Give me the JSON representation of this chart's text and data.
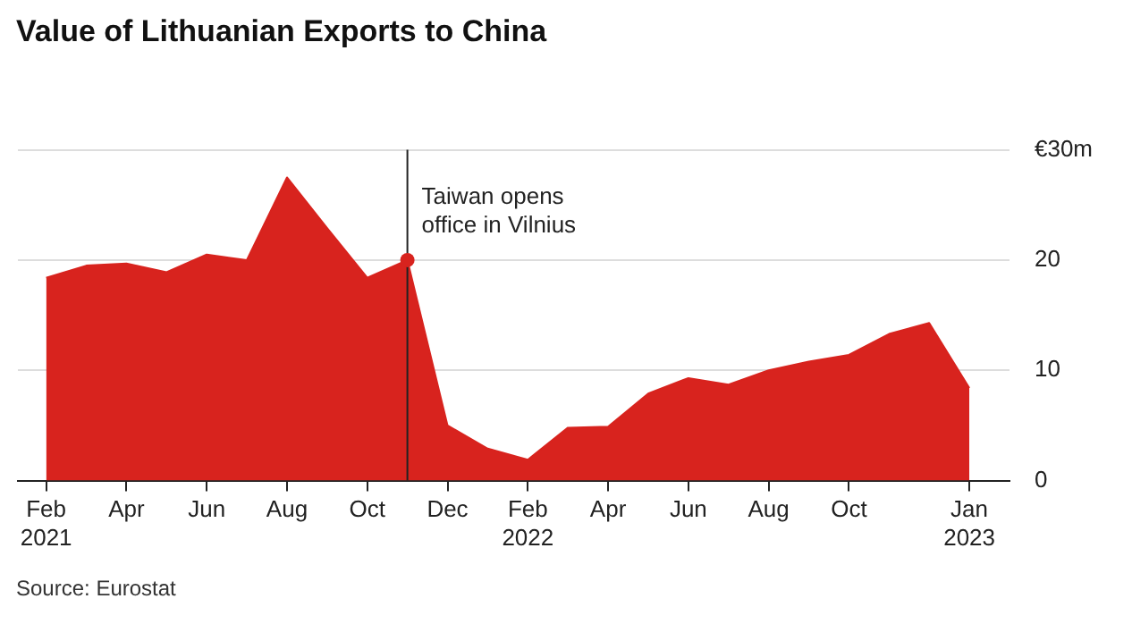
{
  "chart_data": {
    "type": "area",
    "title": "Value of Lithuanian Exports to China",
    "x": [
      "2021-02",
      "2021-03",
      "2021-04",
      "2021-05",
      "2021-06",
      "2021-07",
      "2021-08",
      "2021-09",
      "2021-10",
      "2021-11",
      "2021-12",
      "2022-01",
      "2022-02",
      "2022-03",
      "2022-04",
      "2022-05",
      "2022-06",
      "2022-07",
      "2022-08",
      "2022-09",
      "2022-10",
      "2022-11",
      "2022-12",
      "2023-01"
    ],
    "series": [
      {
        "color": "#d8231e",
        "values": [
          18.4,
          19.5,
          19.7,
          18.9,
          20.5,
          20.0,
          27.5,
          22.9,
          18.4,
          20.0,
          5.0,
          2.9,
          1.9,
          4.8,
          4.9,
          7.9,
          9.3,
          8.7,
          10.0,
          10.8,
          11.4,
          13.3,
          14.3,
          8.4
        ]
      }
    ],
    "xlim": [
      "2021-01-10",
      "2023-02-01"
    ],
    "xticks": [
      {
        "value": "2021-02",
        "label": "Feb 2021"
      },
      {
        "value": "2021-04",
        "label": "Apr"
      },
      {
        "value": "2021-06",
        "label": "Jun"
      },
      {
        "value": "2021-08",
        "label": "Aug"
      },
      {
        "value": "2021-10",
        "label": "Oct"
      },
      {
        "value": "2021-12",
        "label": "Dec"
      },
      {
        "value": "2022-02",
        "label": "Feb 2022"
      },
      {
        "value": "2022-04",
        "label": "Apr"
      },
      {
        "value": "2022-06",
        "label": "Jun"
      },
      {
        "value": "2022-08",
        "label": "Aug"
      },
      {
        "value": "2022-10",
        "label": "Oct"
      },
      {
        "value": "2023-01",
        "label": "Jan 2023"
      }
    ],
    "ylim": [
      0,
      30
    ],
    "yticks": [
      0,
      10,
      20,
      {
        "value": 30,
        "label": "€30m"
      }
    ],
    "grid": "y",
    "legend": false,
    "marker": "none",
    "ref_lines": [
      {
        "axis": "x",
        "value": "2021-11",
        "color": "#222222"
      }
    ],
    "annotations": [
      {
        "text": "Taiwan opens office in Vilnius",
        "x": "2021-11",
        "y": 20.0
      },
      "Source: Eurostat"
    ]
  }
}
